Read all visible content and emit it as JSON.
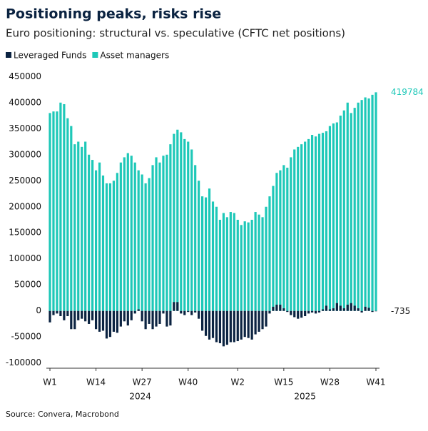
{
  "chart_data": {
    "type": "bar",
    "title": "Positioning peaks, risks rise",
    "subtitle": "Euro positioning: structural vs. speculative (CFTC net positions)",
    "source": "Source: Convera, Macrobond",
    "categories": [
      "W1",
      null,
      null,
      null,
      null,
      null,
      null,
      null,
      null,
      null,
      null,
      null,
      null,
      "W14",
      null,
      null,
      null,
      null,
      null,
      null,
      null,
      null,
      null,
      null,
      null,
      null,
      "W27",
      null,
      null,
      null,
      null,
      null,
      null,
      null,
      null,
      null,
      null,
      null,
      null,
      "W40",
      null,
      null,
      null,
      null,
      null,
      null,
      null,
      null,
      null,
      null,
      null,
      null,
      null,
      "W2",
      null,
      null,
      null,
      null,
      null,
      null,
      null,
      null,
      null,
      null,
      null,
      null,
      "W15",
      null,
      null,
      null,
      null,
      null,
      null,
      null,
      null,
      null,
      null,
      null,
      null,
      "W28",
      null,
      null,
      null,
      null,
      null,
      null,
      null,
      null,
      null,
      null,
      null,
      null,
      "W41"
    ],
    "x_groups": [
      {
        "label": "2024",
        "count": 52
      },
      {
        "label": "2025",
        "count": 41
      }
    ],
    "series": [
      {
        "name": "Leveraged Funds",
        "color": "#0b2341",
        "values": [
          -22000,
          -8000,
          -5000,
          -10000,
          -18000,
          -10000,
          -35000,
          -35000,
          -18000,
          -15000,
          -20000,
          -25000,
          -18000,
          -35000,
          -40000,
          -38000,
          -53000,
          -50000,
          -40000,
          -42000,
          -30000,
          -20000,
          -28000,
          -18000,
          -5000,
          3000,
          -20000,
          -35000,
          -25000,
          -35000,
          -30000,
          -25000,
          -5000,
          -30000,
          -28000,
          17000,
          17000,
          -5000,
          -8000,
          -2000,
          -8000,
          -3000,
          -15000,
          -38000,
          -48000,
          -55000,
          -52000,
          -60000,
          -62000,
          -68000,
          -65000,
          -60000,
          -60000,
          -58000,
          -55000,
          -50000,
          -52000,
          -55000,
          -45000,
          -40000,
          -35000,
          -30000,
          -5000,
          8000,
          12000,
          12000,
          5000,
          -2000,
          -8000,
          -12000,
          -15000,
          -13000,
          -10000,
          -5000,
          -3000,
          -5000,
          -3000,
          3000,
          10000,
          3000,
          5000,
          15000,
          10000,
          5000,
          12000,
          15000,
          10000,
          5000,
          -3000,
          8000,
          6000,
          -2000,
          -735
        ]
      },
      {
        "name": "Asset managers",
        "color": "#1ec8b8",
        "values": [
          380000,
          383000,
          383000,
          400000,
          397000,
          370000,
          355000,
          320000,
          325000,
          315000,
          325000,
          300000,
          290000,
          270000,
          285000,
          260000,
          245000,
          245000,
          250000,
          265000,
          285000,
          295000,
          303000,
          298000,
          285000,
          270000,
          262000,
          245000,
          255000,
          280000,
          295000,
          285000,
          298000,
          300000,
          320000,
          340000,
          348000,
          343000,
          330000,
          325000,
          310000,
          280000,
          250000,
          220000,
          218000,
          235000,
          210000,
          200000,
          175000,
          188000,
          180000,
          190000,
          188000,
          175000,
          165000,
          172000,
          170000,
          175000,
          190000,
          185000,
          180000,
          200000,
          220000,
          240000,
          265000,
          270000,
          280000,
          275000,
          295000,
          310000,
          315000,
          320000,
          325000,
          330000,
          338000,
          335000,
          340000,
          342000,
          345000,
          355000,
          360000,
          362000,
          375000,
          385000,
          400000,
          380000,
          390000,
          400000,
          405000,
          410000,
          408000,
          415000,
          419784
        ]
      }
    ],
    "ylim": [
      -110000,
      460000
    ],
    "yticks": [
      -100000,
      -50000,
      0,
      50000,
      100000,
      150000,
      200000,
      250000,
      300000,
      350000,
      400000,
      450000
    ],
    "grid": false
  }
}
